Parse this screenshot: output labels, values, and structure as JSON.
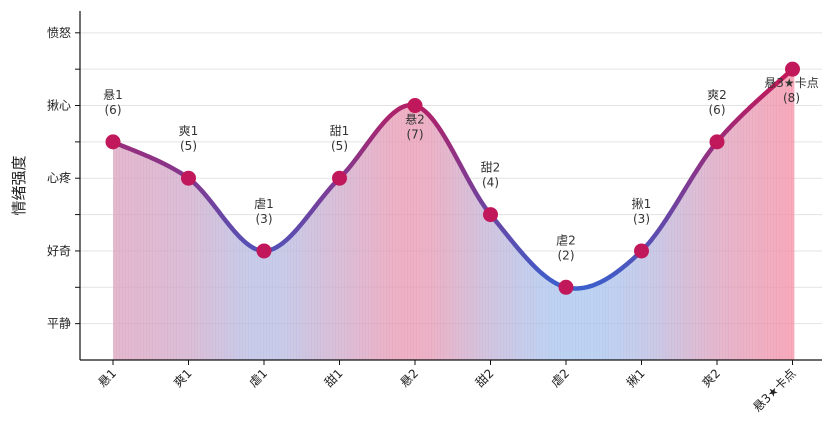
{
  "chart_data": {
    "type": "area",
    "title": "",
    "xlabel": "",
    "ylabel": "情绪强度",
    "categories": [
      "悬1",
      "爽1",
      "虐1",
      "甜1",
      "悬2",
      "甜2",
      "虐2",
      "揪1",
      "爽2",
      "悬3★卡点"
    ],
    "values": [
      6,
      5,
      3,
      5,
      7,
      4,
      2,
      3,
      6,
      8
    ],
    "point_labels": [
      "悬1\n(6)",
      "爽1\n(5)",
      "虐1\n(3)",
      "甜1\n(5)",
      "悬2\n(7)",
      "甜2\n(4)",
      "虐2\n(2)",
      "揪1\n(3)",
      "爽2\n(6)",
      "悬3★卡点\n(8)"
    ],
    "ylim": [
      0,
      9.6
    ],
    "yticks": [
      1,
      2,
      3,
      4,
      5,
      6,
      7,
      8,
      9
    ],
    "ytick_labels": {
      "1": "平静",
      "3": "好奇",
      "5": "心疼",
      "7": "揪心",
      "9": "愤怒"
    },
    "grid": true,
    "legend": "none",
    "colors": {
      "line_high": "#c0185a",
      "line_low": "#3a5fcd",
      "fill_high": "#f48fa6",
      "fill_low": "#a8c4ee",
      "marker": "#c0185a"
    }
  }
}
